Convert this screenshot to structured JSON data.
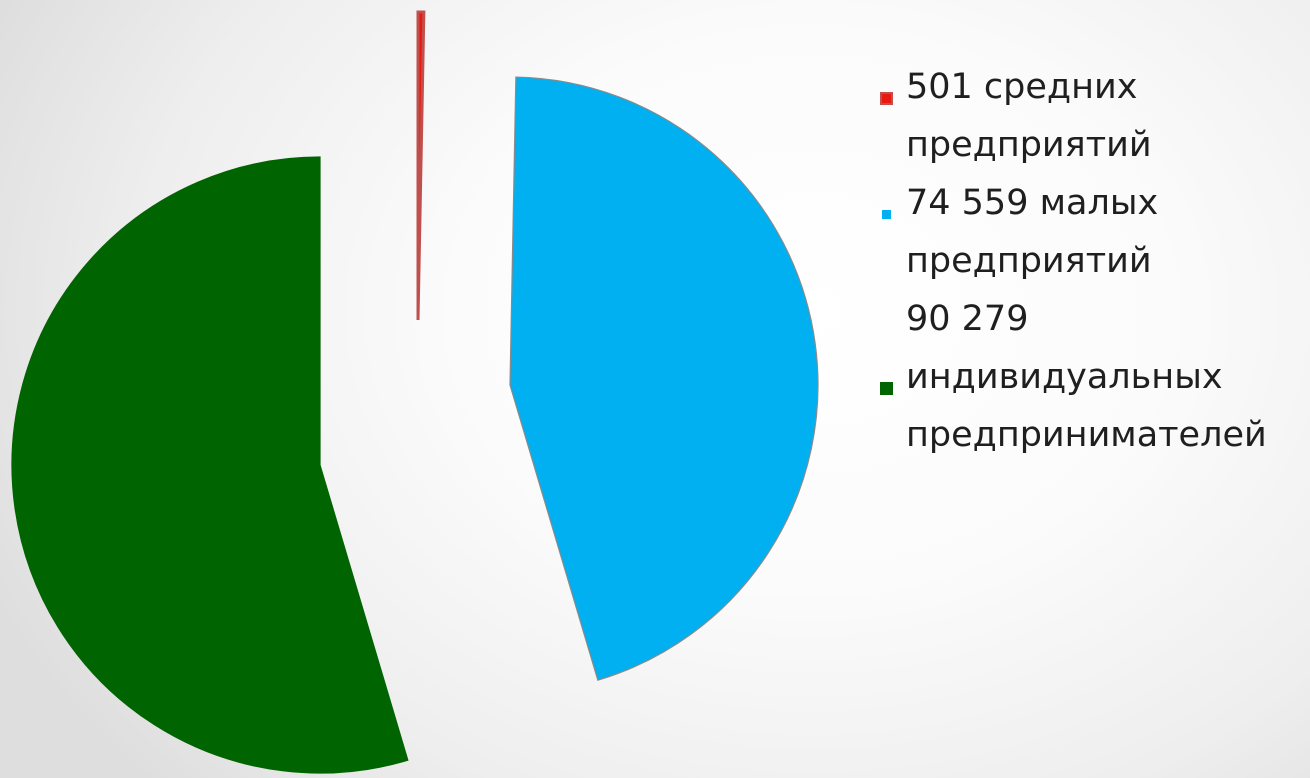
{
  "chart_data": {
    "type": "pie",
    "title": "",
    "categories": [
      "501 средних предприятий",
      "74 559 малых предприятий",
      "90 279 индивидуальных предпринимателей"
    ],
    "values": [
      501,
      74559,
      90279
    ],
    "colors": [
      "#e8190e",
      "#00b0f0",
      "#006400"
    ],
    "exploded": true,
    "legend_position": "right",
    "start_angle": "12 o'clock",
    "direction": "clockwise"
  },
  "legend": [
    {
      "label": "501 средних\nпредприятий",
      "color": "#e8190e",
      "border": "#c0504d"
    },
    {
      "label": "74 559 малых\nпредприятий",
      "color": "#00b0f0",
      "border": "#ffffff"
    },
    {
      "label": "90 279\nиндивидуальных\nпредпринимателей",
      "color": "#006400",
      "border": "#006400"
    }
  ]
}
